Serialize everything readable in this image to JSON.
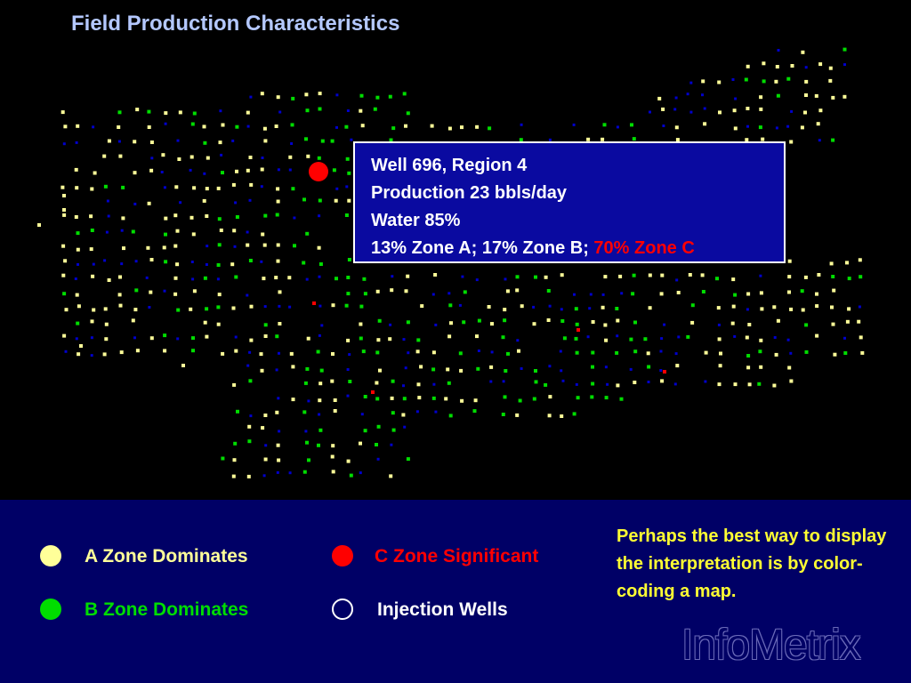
{
  "title": "Field Production Characteristics",
  "callout": {
    "line1": "Well 696, Region 4",
    "line2": "Production 23 bbls/day",
    "line3": "Water 85%",
    "line4_prefix": "13% Zone A; 17% Zone B; ",
    "line4_highlight": "70% Zone C"
  },
  "legend": {
    "a_zone": "A Zone Dominates",
    "b_zone": "B Zone Dominates",
    "c_zone": "C Zone Significant",
    "injection": "Injection Wells"
  },
  "note": "Perhaps the best way to display the interpretation is by color-coding a map.",
  "logo": "InfoMetrix",
  "colors": {
    "a_zone": "#ffff99",
    "b_zone": "#00dd00",
    "c_zone": "#ff0000",
    "injection": "#0000cc",
    "map_background": "#000000",
    "legend_background": "#000066",
    "callout_background": "#0a0aa0"
  }
}
